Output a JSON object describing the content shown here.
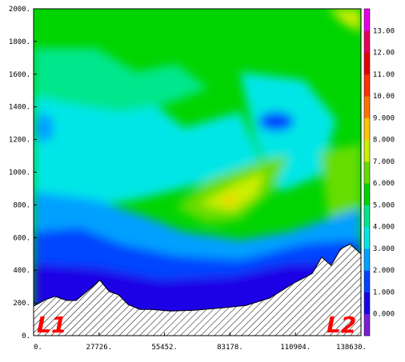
{
  "chart_data": {
    "type": "heatmap",
    "title": "",
    "xlabel": "",
    "ylabel": "",
    "xlim": [
      0,
      138630
    ],
    "ylim": [
      0,
      2000
    ],
    "x_tick_labels": [
      "0.",
      "27726.",
      "55452.",
      "83178.",
      "110904.",
      "138630."
    ],
    "y_tick_labels": [
      "0.",
      "200.",
      "400.",
      "600.",
      "800.",
      "1000.",
      "1200.",
      "1400.",
      "1600.",
      "1800.",
      "2000."
    ],
    "colorbar_levels": [
      0,
      1,
      2,
      3,
      4,
      5,
      6,
      7,
      8,
      9,
      10,
      11,
      12,
      13
    ],
    "colorbar_labels": [
      "0.000",
      "1.000",
      "2.000",
      "3.000",
      "4.000",
      "5.000",
      "6.000",
      "7.000",
      "8.000",
      "9.000",
      "10.00",
      "11.00",
      "12.00",
      "13.00"
    ],
    "colorbar_colors": [
      "#7a1fd6",
      "#1a00e6",
      "#0044ff",
      "#00a0ff",
      "#00e6e6",
      "#00e68c",
      "#00d400",
      "#66dd00",
      "#ccee00",
      "#ffc400",
      "#ff7300",
      "#ff3300",
      "#e60000",
      "#e6005c",
      "#e600e6"
    ],
    "terrain_profile": [
      [
        0,
        180
      ],
      [
        5000,
        220
      ],
      [
        9000,
        240
      ],
      [
        14000,
        215
      ],
      [
        18000,
        215
      ],
      [
        25000,
        300
      ],
      [
        28000,
        340
      ],
      [
        32000,
        270
      ],
      [
        36000,
        250
      ],
      [
        40000,
        190
      ],
      [
        45000,
        160
      ],
      [
        50000,
        160
      ],
      [
        58000,
        150
      ],
      [
        68000,
        155
      ],
      [
        80000,
        170
      ],
      [
        90000,
        185
      ],
      [
        100000,
        230
      ],
      [
        110000,
        320
      ],
      [
        118000,
        380
      ],
      [
        122000,
        480
      ],
      [
        126000,
        430
      ],
      [
        130000,
        530
      ],
      [
        134000,
        560
      ],
      [
        138630,
        500
      ]
    ],
    "corner_labels": {
      "left": "L1",
      "right": "L2"
    }
  }
}
